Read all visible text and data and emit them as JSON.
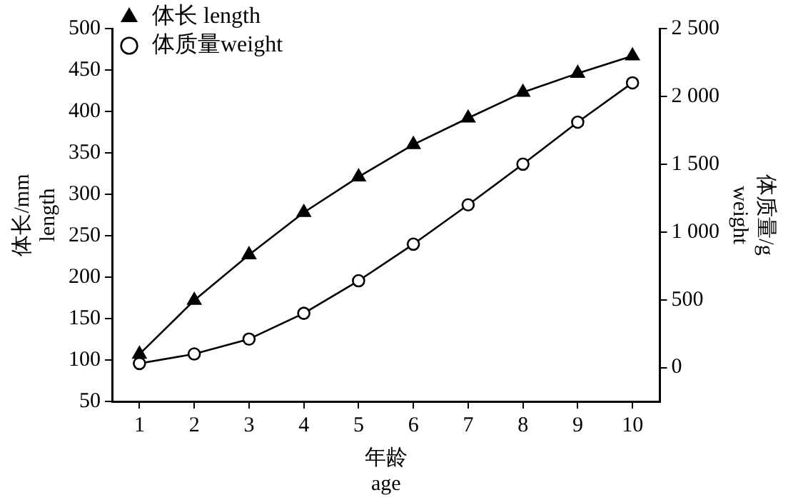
{
  "chart_data": {
    "type": "line",
    "xlabel": "年龄\nage",
    "ylabel": "体长/mm\nlength",
    "y2label": "体质量/g\nweight",
    "x": [
      1,
      2,
      3,
      4,
      5,
      6,
      7,
      8,
      9,
      10
    ],
    "xlim": [
      0.5,
      10.5
    ],
    "xticks": [
      1,
      2,
      3,
      4,
      5,
      6,
      7,
      8,
      9,
      10
    ],
    "ylim": [
      50,
      500
    ],
    "yticks": [
      50,
      100,
      150,
      200,
      250,
      300,
      350,
      400,
      450,
      500
    ],
    "y2lim": [
      -250,
      2500
    ],
    "y2ticks": [
      0,
      500,
      {
        "value": 1000,
        "label": "1 000"
      },
      {
        "value": 1500,
        "label": "1 500"
      },
      {
        "value": 2000,
        "label": "2 000"
      },
      {
        "value": 2500,
        "label": "2 500"
      }
    ],
    "series": [
      {
        "name": "体长 length",
        "color": "#000000",
        "marker": "triangle",
        "values": [
          107,
          172,
          227,
          278,
          321,
          360,
          392,
          423,
          446,
          467
        ]
      },
      {
        "name": "体质量weight",
        "color": "#000000",
        "marker": "circle",
        "axis": "y2",
        "values": [
          30,
          100,
          210,
          400,
          640,
          910,
          1200,
          1500,
          1810,
          2100
        ]
      }
    ],
    "grid": false,
    "legend": "top left",
    "line_style": "solid"
  }
}
